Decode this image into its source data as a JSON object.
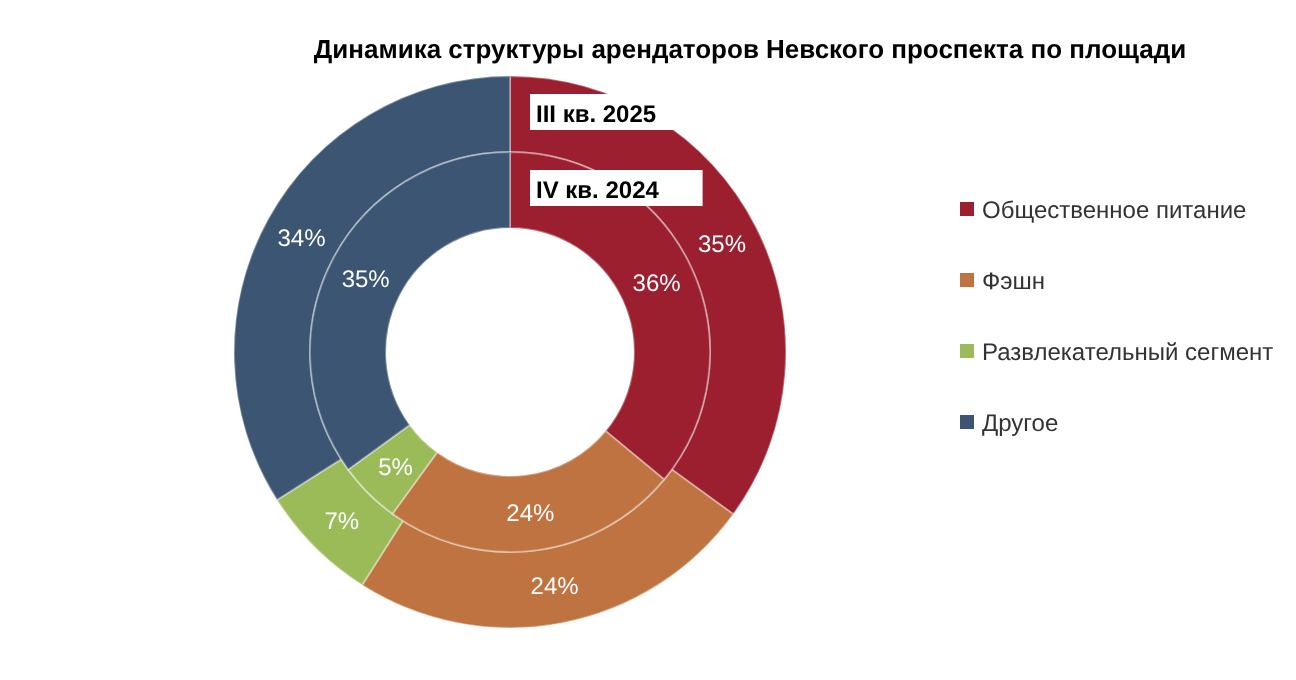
{
  "chart_data": {
    "type": "donut",
    "title": "Динамика структуры арендаторов Невского проспекта по площади",
    "categories": [
      "Общественное питание",
      "Фэшн",
      "Развлекательный сегмент",
      "Другое"
    ],
    "colors": [
      "#9b1f2e",
      "#be7340",
      "#9bbb59",
      "#3b5572"
    ],
    "series": [
      {
        "name": "III кв. 2025",
        "values": [
          35,
          24,
          7,
          34
        ],
        "value_labels": [
          "35%",
          "24%",
          "7%",
          "34%"
        ]
      },
      {
        "name": "IV кв. 2024",
        "values": [
          36,
          24,
          5,
          35
        ],
        "value_labels": [
          "36%",
          "24%",
          "5%",
          "35%"
        ]
      }
    ],
    "legend": "right"
  }
}
